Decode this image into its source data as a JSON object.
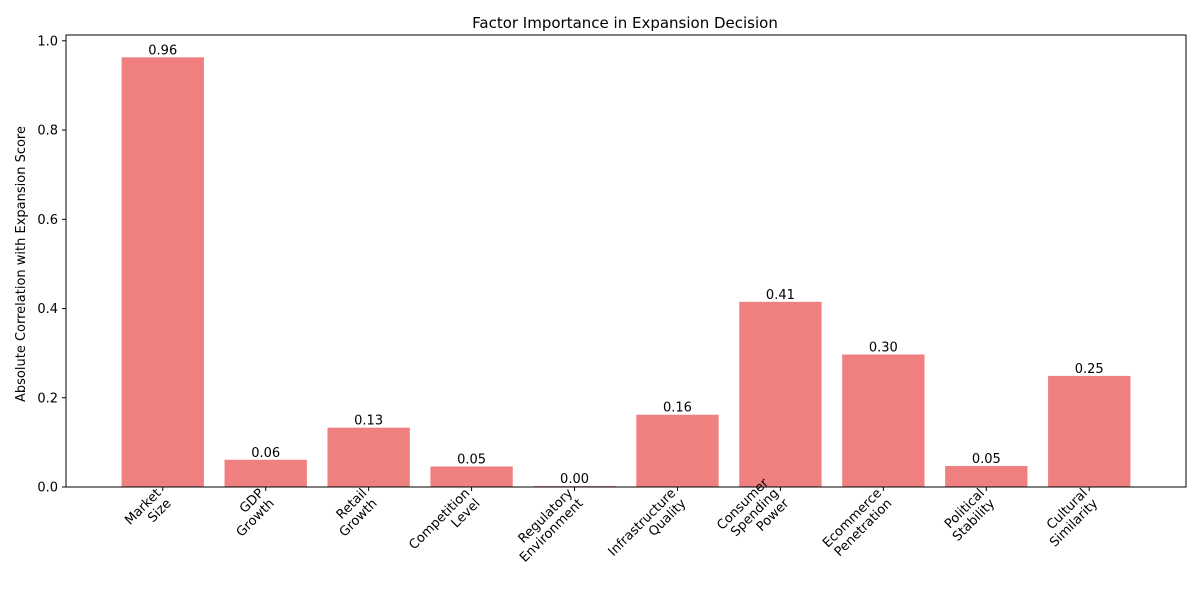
{
  "chart_data": {
    "type": "bar",
    "title": "Factor Importance in Expansion Decision",
    "xlabel": "",
    "ylabel": "Absolute Correlation with Expansion Score",
    "categories": [
      "Market\nSize",
      "GDP\nGrowth",
      "Retail\nGrowth",
      "Competition\nLevel",
      "Regulatory\nEnvironment",
      "Infrastructure\nQuality",
      "Consumer\nSpending\nPower",
      "Ecommerce\nPenetration",
      "Political\nStability",
      "Cultural\nSimilarity"
    ],
    "values": [
      0.963,
      0.061,
      0.133,
      0.046,
      0.002,
      0.162,
      0.415,
      0.297,
      0.047,
      0.249
    ],
    "data_labels": [
      "0.96",
      "0.06",
      "0.13",
      "0.05",
      "0.00",
      "0.16",
      "0.41",
      "0.30",
      "0.05",
      "0.25"
    ],
    "ylim": [
      0,
      1.013
    ],
    "yticks": [
      0.0,
      0.2,
      0.4,
      0.6,
      0.8,
      1.0
    ],
    "ytick_labels": [
      "0.0",
      "0.2",
      "0.4",
      "0.6",
      "0.8",
      "1.0"
    ],
    "bar_color": "#f08080",
    "grid": false,
    "legend": "none"
  }
}
